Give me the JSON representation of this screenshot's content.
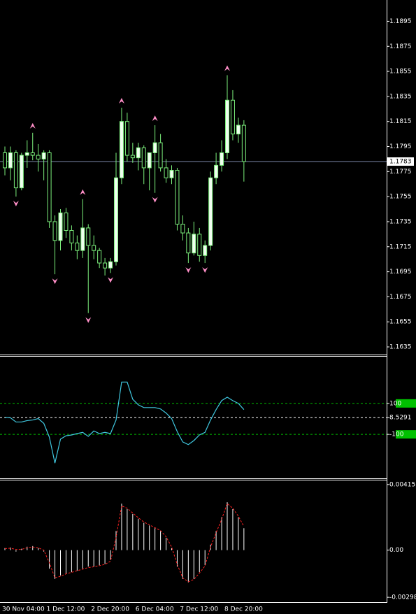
{
  "chart_data": [
    {
      "type": "candlestick",
      "categories": [
        "30 Nov 04:00",
        null,
        null,
        null,
        null,
        null,
        null,
        null,
        "1 Dec 12:00",
        null,
        null,
        null,
        null,
        null,
        null,
        null,
        "2 Dec 20:00",
        null,
        null,
        null,
        null,
        null,
        null,
        null,
        "6 Dec 04:00",
        null,
        null,
        null,
        null,
        null,
        null,
        null,
        "7 Dec 12:00",
        null,
        null,
        null,
        null,
        null,
        null,
        null,
        "8 Dec 20:00",
        null,
        null,
        null
      ],
      "open": [
        1.179,
        1.1778,
        1.179,
        1.1762,
        1.1788,
        1.179,
        1.1788,
        1.1785,
        1.179,
        1.1735,
        1.172,
        1.1742,
        1.1728,
        1.1718,
        1.1712,
        1.173,
        1.1716,
        1.1712,
        1.1702,
        1.1698,
        1.1703,
        1.177,
        1.1815,
        1.1788,
        1.1786,
        1.1794,
        1.1778,
        1.179,
        1.1798,
        1.1778,
        1.177,
        1.1776,
        1.1733,
        1.1726,
        1.171,
        1.1725,
        1.1708,
        1.1716,
        1.177,
        1.178,
        1.179,
        1.1832,
        1.1805,
        1.1812
      ],
      "high": [
        1.1795,
        1.1795,
        1.1792,
        1.179,
        1.18,
        1.1806,
        1.1797,
        1.1792,
        1.1792,
        1.174,
        1.1745,
        1.1746,
        1.1732,
        1.1724,
        1.1753,
        1.1733,
        1.1724,
        1.1714,
        1.1706,
        1.1706,
        1.179,
        1.1826,
        1.1822,
        1.1798,
        1.1798,
        1.1796,
        1.179,
        1.1812,
        1.1805,
        1.1785,
        1.178,
        1.1778,
        1.174,
        1.173,
        1.1735,
        1.173,
        1.172,
        1.1775,
        1.179,
        1.18,
        1.1852,
        1.184,
        1.1818,
        1.1816
      ],
      "low": [
        1.1772,
        1.1768,
        1.1755,
        1.176,
        1.1778,
        1.1784,
        1.1775,
        1.1768,
        1.173,
        1.1693,
        1.1712,
        1.1722,
        1.1712,
        1.1705,
        1.1706,
        1.1662,
        1.1705,
        1.1698,
        1.1692,
        1.1694,
        1.17,
        1.1765,
        1.1783,
        1.1782,
        1.1776,
        1.1765,
        1.176,
        1.1758,
        1.1775,
        1.1766,
        1.1765,
        1.1728,
        1.172,
        1.1702,
        1.1708,
        1.1703,
        1.1702,
        1.1712,
        1.1765,
        1.1775,
        1.1785,
        1.18,
        1.1798,
        1.1767
      ],
      "close": [
        1.1778,
        1.179,
        1.1762,
        1.1788,
        1.179,
        1.1788,
        1.1785,
        1.179,
        1.1735,
        1.172,
        1.1742,
        1.1728,
        1.1718,
        1.1712,
        1.173,
        1.1716,
        1.1712,
        1.1702,
        1.1698,
        1.1703,
        1.177,
        1.1815,
        1.1788,
        1.1786,
        1.1794,
        1.1778,
        1.179,
        1.1798,
        1.1778,
        1.177,
        1.1776,
        1.1733,
        1.1726,
        1.171,
        1.1725,
        1.1708,
        1.1716,
        1.177,
        1.178,
        1.179,
        1.1832,
        1.1805,
        1.1812,
        1.1783
      ],
      "color": "#7cf07c",
      "up_fill": "#f0fff0",
      "down_fill": "#000000",
      "up_arrows": [
        5,
        14,
        21,
        27,
        40
      ],
      "down_arrows": [
        2,
        9,
        15,
        19,
        27,
        33,
        36
      ],
      "arrow_color": "#ff8fc8",
      "last_price": 1.1783,
      "last_price_color": "#7d88aa",
      "ylim": [
        1.163,
        1.1912
      ],
      "yticks": [
        1.1895,
        1.1875,
        1.1855,
        1.1835,
        1.1815,
        1.1795,
        1.1775,
        1.1755,
        1.1735,
        1.1715,
        1.1695,
        1.1675,
        1.1655,
        1.1635
      ]
    },
    {
      "type": "line",
      "color": "#40c8e0",
      "values": [
        11,
        7,
        -20,
        -20,
        -11,
        -7,
        2,
        -29,
        -118,
        -286,
        -131,
        -109,
        -104,
        -95,
        -87,
        -113,
        -78,
        -95,
        -87,
        -95,
        -7,
        238,
        238,
        127,
        91,
        73,
        73,
        73,
        64,
        38,
        2,
        -82,
        -149,
        -166,
        -140,
        -104,
        -87,
        -7,
        60,
        118,
        140,
        118,
        100,
        60
      ],
      "ylim": [
        -375,
        393
      ],
      "yticks": [
        100,
        8.5291,
        -100
      ],
      "level_colors": [
        "#00c000",
        "#ffffff",
        "#00c000"
      ]
    },
    {
      "type": "bar",
      "color": "#ffffff",
      "values": [
        0.00013,
        0.00017,
        -9e-05,
        9e-05,
        0.00022,
        0.00026,
        0.00013,
        -9e-05,
        -0.00117,
        -0.00182,
        -0.0016,
        -0.00147,
        -0.00139,
        -0.0013,
        -0.00117,
        -0.00104,
        -0.00104,
        -0.00095,
        -0.00087,
        -0.00061,
        0.00121,
        0.00294,
        0.0026,
        0.00229,
        0.00199,
        0.00173,
        0.00156,
        0.00139,
        0.00121,
        0.00078,
        0.00013,
        -0.00104,
        -0.00182,
        -0.00204,
        -0.00182,
        -0.00139,
        -0.00095,
        0.00035,
        0.00121,
        0.00208,
        0.00303,
        0.0026,
        0.00208,
        0.00139
      ],
      "signal": [
        0.0001,
        0.00012,
        5e-05,
        5e-05,
        0.00015,
        0.0002,
        0.00015,
        0.0,
        -0.0008,
        -0.00175,
        -0.00165,
        -0.0015,
        -0.0014,
        -0.0013,
        -0.0012,
        -0.0011,
        -0.00105,
        -0.00098,
        -0.0009,
        -0.0007,
        0.0008,
        0.0028,
        0.00265,
        0.00235,
        0.00205,
        0.00178,
        0.0016,
        0.00142,
        0.00124,
        0.00085,
        0.0002,
        -0.0009,
        -0.00175,
        -0.002,
        -0.00185,
        -0.00145,
        -0.001,
        0.0002,
        0.0011,
        0.00195,
        0.00295,
        0.00265,
        0.00215,
        0.0015
      ],
      "signal_color": "#ff2020",
      "ylim": [
        -0.00324,
        0.00432
      ],
      "yticks": [
        0.00415,
        {
          "value": 0,
          "label": "0.00"
        },
        -0.00298
      ]
    }
  ]
}
